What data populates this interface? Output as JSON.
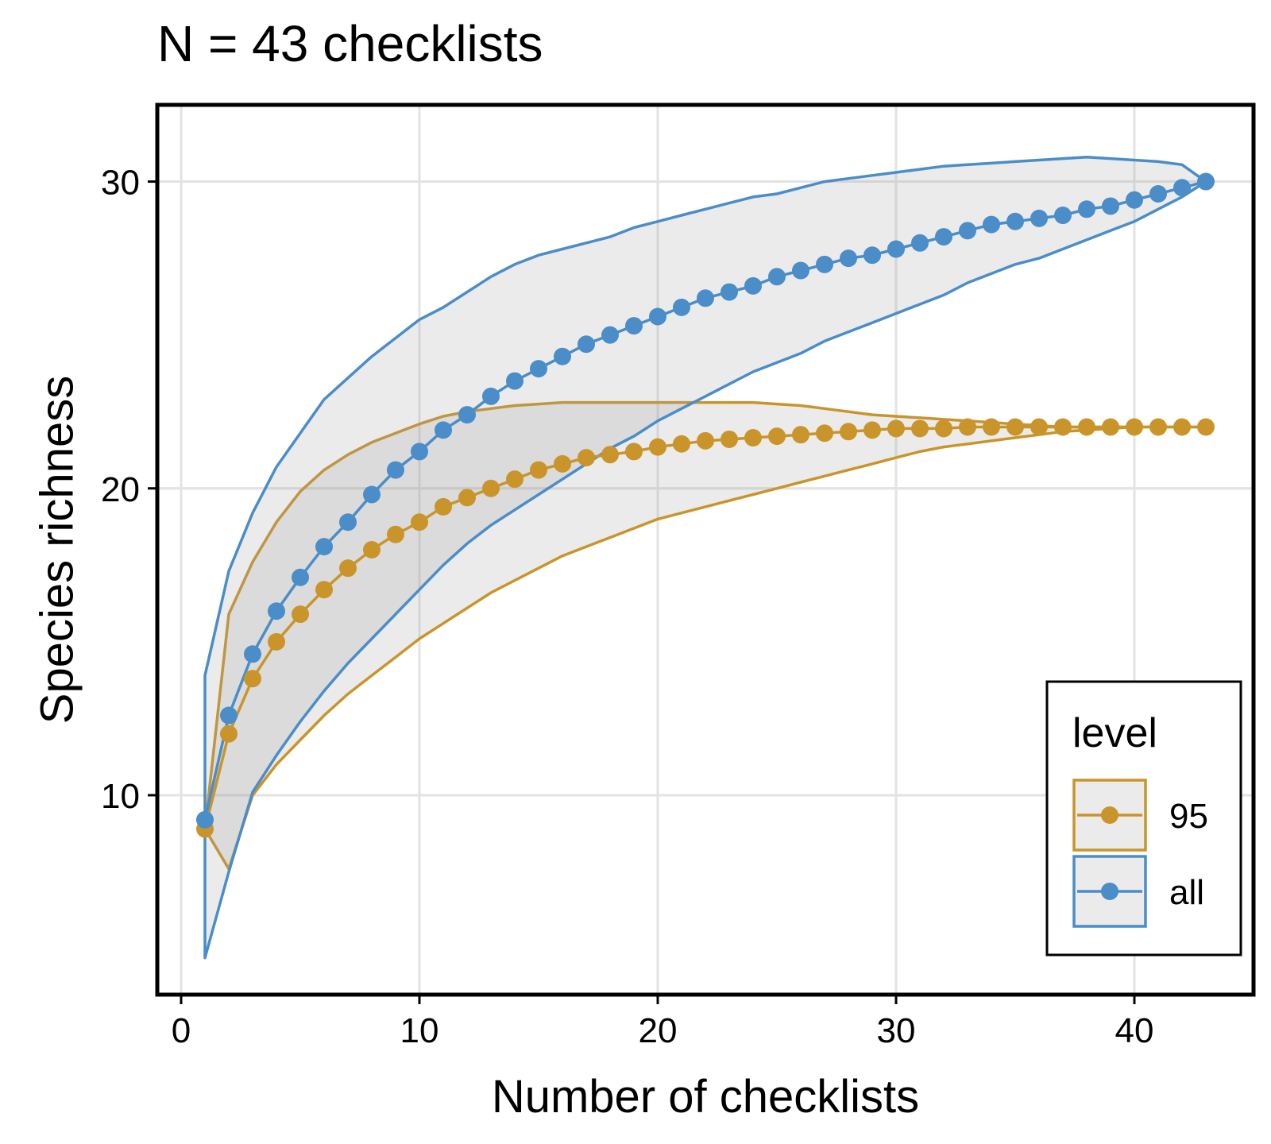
{
  "chart_data": {
    "type": "line",
    "title": "N = 43 checklists",
    "xlabel": "Number of checklists",
    "ylabel": "Species richness",
    "xlim": [
      -1,
      45
    ],
    "ylim": [
      3.5,
      32.5
    ],
    "xticks": [
      0,
      10,
      20,
      30,
      40
    ],
    "yticks": [
      10,
      20,
      30
    ],
    "grid": true,
    "legend": {
      "title": "level",
      "position": "bottom-right"
    },
    "series": [
      {
        "name": "95",
        "color": "#C9952B",
        "x": [
          1,
          2,
          3,
          4,
          5,
          6,
          7,
          8,
          9,
          10,
          11,
          12,
          13,
          14,
          15,
          16,
          17,
          18,
          19,
          20,
          21,
          22,
          23,
          24,
          25,
          26,
          27,
          28,
          29,
          30,
          31,
          32,
          33,
          34,
          35,
          36,
          37,
          38,
          39,
          40,
          41,
          42,
          43
        ],
        "y": [
          8.9,
          12.0,
          13.8,
          15.0,
          15.9,
          16.7,
          17.4,
          18.0,
          18.5,
          18.9,
          19.4,
          19.7,
          20.0,
          20.3,
          20.6,
          20.8,
          21.0,
          21.1,
          21.2,
          21.35,
          21.45,
          21.55,
          21.6,
          21.65,
          21.7,
          21.75,
          21.8,
          21.85,
          21.9,
          21.95,
          21.95,
          21.95,
          22.0,
          22.0,
          22.0,
          22.0,
          22.0,
          22.0,
          22.0,
          22.0,
          22.0,
          22.0,
          22.0
        ],
        "lower": [
          8.9,
          7.6,
          10.0,
          11.0,
          11.8,
          12.6,
          13.3,
          13.9,
          14.5,
          15.1,
          15.6,
          16.1,
          16.6,
          17.0,
          17.4,
          17.8,
          18.1,
          18.4,
          18.7,
          19.0,
          19.2,
          19.4,
          19.6,
          19.8,
          20.0,
          20.2,
          20.4,
          20.6,
          20.8,
          21.0,
          21.2,
          21.35,
          21.45,
          21.55,
          21.65,
          21.75,
          21.85,
          21.9,
          21.95,
          22.0,
          22.0,
          22.0,
          22.0
        ],
        "upper": [
          8.9,
          15.9,
          17.6,
          18.9,
          19.9,
          20.6,
          21.1,
          21.5,
          21.8,
          22.1,
          22.35,
          22.5,
          22.6,
          22.7,
          22.75,
          22.8,
          22.8,
          22.8,
          22.8,
          22.8,
          22.8,
          22.8,
          22.8,
          22.8,
          22.75,
          22.7,
          22.6,
          22.5,
          22.4,
          22.35,
          22.3,
          22.25,
          22.2,
          22.15,
          22.1,
          22.05,
          22.0,
          22.0,
          22.0,
          22.0,
          22.0,
          22.0,
          22.0
        ]
      },
      {
        "name": "all",
        "color": "#4A8DC8",
        "x": [
          1,
          2,
          3,
          4,
          5,
          6,
          7,
          8,
          9,
          10,
          11,
          12,
          13,
          14,
          15,
          16,
          17,
          18,
          19,
          20,
          21,
          22,
          23,
          24,
          25,
          26,
          27,
          28,
          29,
          30,
          31,
          32,
          33,
          34,
          35,
          36,
          37,
          38,
          39,
          40,
          41,
          42,
          43
        ],
        "y": [
          9.2,
          12.6,
          14.6,
          16.0,
          17.1,
          18.1,
          18.9,
          19.8,
          20.6,
          21.2,
          21.9,
          22.4,
          23.0,
          23.5,
          23.9,
          24.3,
          24.7,
          25.0,
          25.3,
          25.6,
          25.9,
          26.2,
          26.4,
          26.6,
          26.9,
          27.1,
          27.3,
          27.5,
          27.6,
          27.8,
          28.0,
          28.2,
          28.4,
          28.6,
          28.7,
          28.8,
          28.9,
          29.1,
          29.2,
          29.4,
          29.6,
          29.8,
          30.0
        ],
        "lower": [
          4.7,
          7.5,
          10.1,
          11.3,
          12.4,
          13.4,
          14.3,
          15.1,
          15.9,
          16.7,
          17.5,
          18.2,
          18.8,
          19.3,
          19.8,
          20.3,
          20.8,
          21.3,
          21.7,
          22.2,
          22.6,
          23.0,
          23.4,
          23.8,
          24.1,
          24.4,
          24.8,
          25.1,
          25.4,
          25.7,
          26.0,
          26.3,
          26.7,
          27.0,
          27.3,
          27.5,
          27.8,
          28.1,
          28.4,
          28.7,
          29.1,
          29.5,
          30.0
        ],
        "upper": [
          13.9,
          17.3,
          19.2,
          20.7,
          21.8,
          22.9,
          23.6,
          24.3,
          24.9,
          25.5,
          25.9,
          26.4,
          26.9,
          27.3,
          27.6,
          27.8,
          28.0,
          28.2,
          28.5,
          28.7,
          28.9,
          29.1,
          29.3,
          29.5,
          29.6,
          29.8,
          30.0,
          30.1,
          30.2,
          30.3,
          30.4,
          30.5,
          30.55,
          30.6,
          30.65,
          30.7,
          30.75,
          30.8,
          30.75,
          30.7,
          30.65,
          30.55,
          30.0
        ]
      }
    ]
  }
}
